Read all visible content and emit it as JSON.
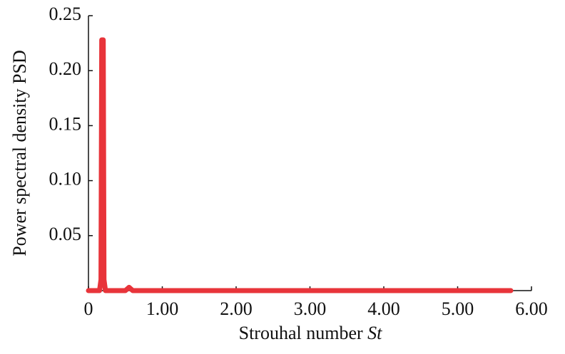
{
  "chart_data": {
    "type": "line",
    "xlabel": "Strouhal number",
    "xlabel_symbol": "St",
    "ylabel": "Power spectral density PSD",
    "x": [
      0,
      0.1,
      0.15,
      0.17,
      0.18,
      0.2,
      0.21,
      0.23,
      0.5,
      0.55,
      0.6,
      5.72
    ],
    "series": [
      {
        "name": "PSD",
        "color": "#e8343a",
        "values": [
          0,
          0,
          0,
          0.01,
          0.228,
          0.228,
          0.01,
          0,
          0,
          0.003,
          0,
          0
        ]
      }
    ],
    "xlim": [
      0,
      6
    ],
    "xticks": [
      0,
      {
        "value": 1,
        "label": "1.00"
      },
      {
        "value": 2,
        "label": "2.00"
      },
      {
        "value": 3,
        "label": "3.00"
      },
      {
        "value": 4,
        "label": "4.00"
      },
      {
        "value": 5,
        "label": "5.00"
      },
      {
        "value": 6,
        "label": "6.00"
      }
    ],
    "ylim": [
      0,
      0.25
    ],
    "yticks": [
      0.05,
      {
        "value": 0.1,
        "label": "0.10"
      },
      0.15,
      {
        "value": 0.2,
        "label": "0.20"
      },
      0.25
    ],
    "grid": false
  }
}
